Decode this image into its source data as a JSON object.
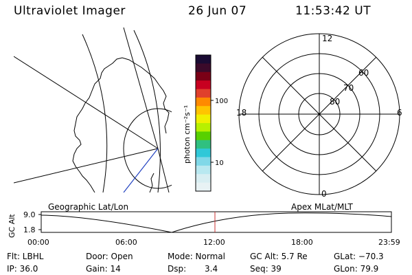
{
  "header": {
    "instrument": "Ultraviolet Imager",
    "date": "26 Jun 07",
    "time": "11:53:42 UT"
  },
  "left_panel": {
    "label": "Geographic Lat/Lon"
  },
  "right_panel": {
    "label": "Apex MLat/MLT",
    "mlt_labels": {
      "top": "12",
      "left": "18",
      "right": "6",
      "bottom": "0"
    },
    "lat_labels": [
      "60",
      "70",
      "80"
    ]
  },
  "colorbar": {
    "unit": "photon cm⁻²s⁻¹",
    "ticks": [
      "100",
      "10"
    ],
    "colors": [
      "#1a0b33",
      "#3b0a2a",
      "#7a0016",
      "#c80020",
      "#e0402c",
      "#ff8a00",
      "#ffc400",
      "#f0f000",
      "#b8f000",
      "#58d000",
      "#30c080",
      "#30c8d8",
      "#80d8e8",
      "#b8e8f0",
      "#d8eef2",
      "#e8f2f4"
    ]
  },
  "altitude_plot": {
    "ylabel": "GC Alt",
    "yticks": [
      "9.0",
      "1.8"
    ],
    "xticks": [
      "00:00",
      "06:00",
      "12:00",
      "18:00",
      "23:59"
    ],
    "marker_color": "#c83030"
  },
  "status": {
    "flt": "Flt: LBHL",
    "ip": "IP: 36.0",
    "door": "Door: Open",
    "gain": "Gain: 14",
    "mode": "Mode: Normal",
    "dsp_label": "Dsp:",
    "dsp_value": "3.4",
    "gc_alt": "GC Alt: 5.7 Re",
    "seq": "Seq: 39",
    "glat": "GLat: −70.3",
    "glon": "GLon: 79.9"
  }
}
